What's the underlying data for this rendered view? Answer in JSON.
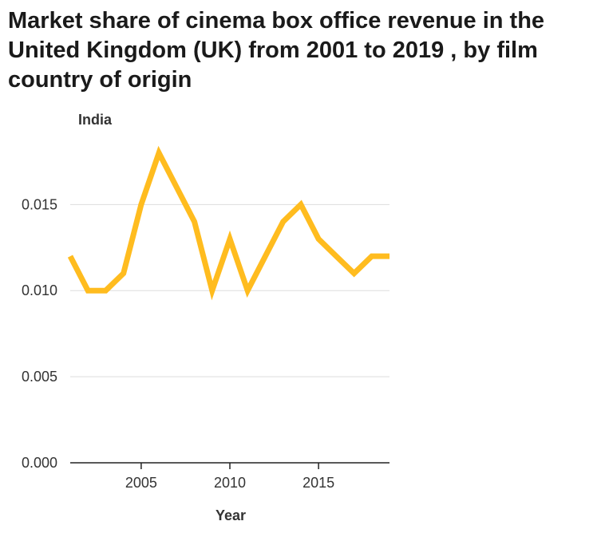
{
  "chart_data": {
    "type": "line",
    "title": "Market share of cinema box office revenue in the United Kingdom (UK) from 2001 to 2019 , by film country of origin",
    "ylabel": "India",
    "xlabel": "Year",
    "x": [
      2001,
      2002,
      2003,
      2004,
      2005,
      2006,
      2007,
      2008,
      2009,
      2010,
      2011,
      2012,
      2013,
      2014,
      2015,
      2016,
      2017,
      2018,
      2019
    ],
    "series": [
      {
        "values": [
          0.012,
          0.01,
          0.01,
          0.011,
          0.015,
          0.018,
          0.016,
          0.014,
          0.01,
          0.013,
          0.01,
          0.012,
          0.014,
          0.015,
          0.013,
          0.012,
          0.011,
          0.012,
          0.012
        ],
        "color": "#FFBC1F"
      }
    ],
    "xlim": [
      2001,
      2019
    ],
    "ylim": [
      0,
      0.019
    ],
    "xticks": [
      2005,
      2010,
      2015
    ],
    "xtick_labels": [
      "2005",
      "2010",
      "2015"
    ],
    "yticks": [
      0,
      0.005,
      0.01,
      0.015
    ],
    "ytick_labels": [
      "0.000",
      "0.005",
      "0.010",
      "0.015"
    ],
    "grid": true,
    "gridColor": "#dddddd",
    "axisColor": "#222222"
  }
}
